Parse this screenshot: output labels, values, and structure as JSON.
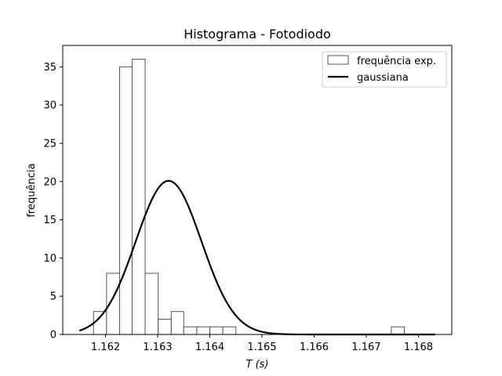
{
  "chart_data": {
    "type": "bar",
    "title": "Histograma - Fotodiodo",
    "xlabel": "T (s)",
    "ylabel": "frequência",
    "xlim": [
      1.16118,
      1.16864
    ],
    "ylim": [
      0,
      37.8
    ],
    "xticks": [
      "1.162",
      "1.163",
      "1.164",
      "1.165",
      "1.166",
      "1.167",
      "1.168"
    ],
    "yticks": [
      "0",
      "5",
      "10",
      "15",
      "20",
      "25",
      "30",
      "35"
    ],
    "bins": [
      {
        "start": 1.16177,
        "end": 1.16202,
        "value": 3
      },
      {
        "start": 1.16202,
        "end": 1.16227,
        "value": 8
      },
      {
        "start": 1.16227,
        "end": 1.16251,
        "value": 35
      },
      {
        "start": 1.16251,
        "end": 1.16276,
        "value": 36
      },
      {
        "start": 1.16276,
        "end": 1.16301,
        "value": 8
      },
      {
        "start": 1.16301,
        "end": 1.16326,
        "value": 2
      },
      {
        "start": 1.16326,
        "end": 1.1635,
        "value": 3
      },
      {
        "start": 1.1635,
        "end": 1.16375,
        "value": 1
      },
      {
        "start": 1.16375,
        "end": 1.164,
        "value": 1
      },
      {
        "start": 1.164,
        "end": 1.16425,
        "value": 1
      },
      {
        "start": 1.16425,
        "end": 1.1645,
        "value": 1
      },
      {
        "start": 1.1645,
        "end": 1.16475,
        "value": 0
      },
      {
        "start": 1.16475,
        "end": 1.165,
        "value": 0
      },
      {
        "start": 1.165,
        "end": 1.16524,
        "value": 0
      },
      {
        "start": 1.16524,
        "end": 1.16549,
        "value": 0
      },
      {
        "start": 1.16549,
        "end": 1.16574,
        "value": 0
      },
      {
        "start": 1.16574,
        "end": 1.16599,
        "value": 0
      },
      {
        "start": 1.16599,
        "end": 1.16624,
        "value": 0
      },
      {
        "start": 1.16624,
        "end": 1.16649,
        "value": 0
      },
      {
        "start": 1.16649,
        "end": 1.16673,
        "value": 0
      },
      {
        "start": 1.16673,
        "end": 1.16698,
        "value": 0
      },
      {
        "start": 1.16698,
        "end": 1.16723,
        "value": 0
      },
      {
        "start": 1.16723,
        "end": 1.16748,
        "value": 0
      },
      {
        "start": 1.16748,
        "end": 1.16773,
        "value": 1
      }
    ],
    "gaussian": {
      "mean": 1.16321,
      "sigma": 0.00063,
      "peak": 20.1,
      "x_start": 1.1615,
      "x_end": 1.16832
    },
    "legend": {
      "position": "top-right",
      "entries": [
        "frequência exp.",
        "gaussiana"
      ]
    },
    "colors": {
      "bar_edge": "#555555",
      "bar_fill": "#ffffff",
      "curve": "#000000"
    },
    "grid": false
  }
}
